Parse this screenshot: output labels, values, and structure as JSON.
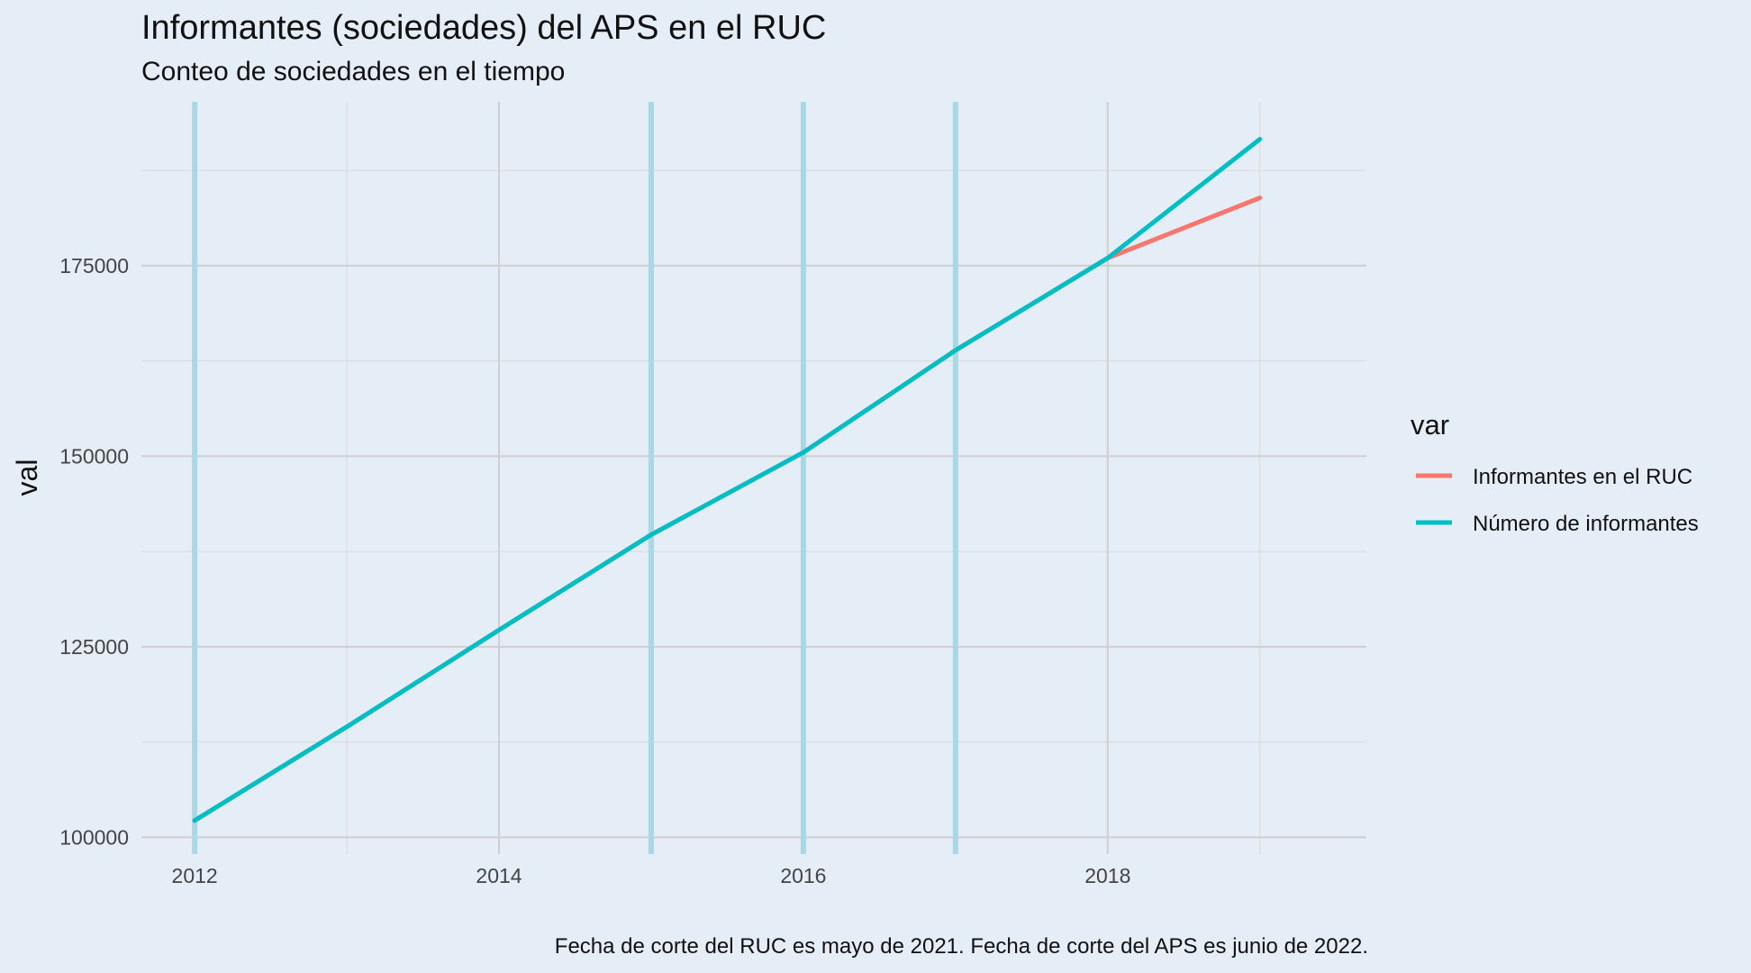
{
  "chart_data": {
    "type": "line",
    "title": "Informantes (sociedades) del APS en el RUC",
    "subtitle": "Conteo de sociedades en el tiempo",
    "xlabel": "",
    "ylabel": "val",
    "caption": "Fecha de corte del RUC es mayo de 2021. Fecha de corte del APS es junio de 2022.",
    "x": [
      2012,
      2013,
      2014,
      2015,
      2016,
      2017,
      2018,
      2019
    ],
    "xlim": [
      2011.65,
      2019.7
    ],
    "ylim": [
      97800,
      196500
    ],
    "x_ticks": [
      2012,
      2014,
      2016,
      2018
    ],
    "x_tick_labels": [
      "2012",
      "2014",
      "2016",
      "2018"
    ],
    "x_minor_ticks": [
      2013,
      2015,
      2017,
      2019
    ],
    "y_ticks": [
      100000,
      125000,
      150000,
      175000
    ],
    "y_tick_labels": [
      "100000",
      "125000",
      "150000",
      "175000"
    ],
    "y_minor_ticks": [
      112500,
      137500,
      162500,
      187500
    ],
    "highlight_years": [
      2012,
      2015,
      2016,
      2017
    ],
    "highlight_color": "#a8d8e6",
    "grid": true,
    "legend": {
      "title": "var",
      "position": "right"
    },
    "series": [
      {
        "name": "Informantes en el RUC",
        "color": "#f8766d",
        "values": [
          102200,
          114500,
          127200,
          139700,
          150500,
          163900,
          176000,
          183900
        ]
      },
      {
        "name": "Número de informantes",
        "color": "#00bfc4",
        "values": [
          102200,
          114500,
          127200,
          139700,
          150500,
          163900,
          176000,
          191600
        ]
      }
    ]
  }
}
